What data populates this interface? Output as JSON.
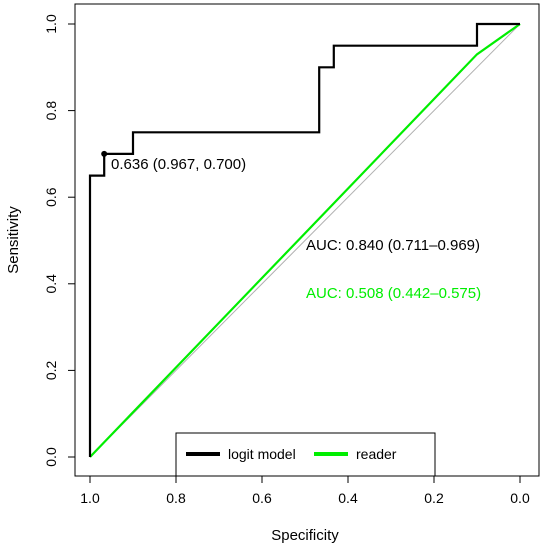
{
  "chart_data": {
    "type": "line",
    "title": "",
    "xlabel": "Specificity",
    "ylabel": "Sensitivity",
    "xlim": [
      1.0,
      0.0
    ],
    "ylim": [
      0.0,
      1.0
    ],
    "x_axis_reversed": true,
    "x_ticks": [
      "1.0",
      "0.8",
      "0.6",
      "0.4",
      "0.2",
      "0.0"
    ],
    "y_ticks": [
      "0.0",
      "0.2",
      "0.4",
      "0.6",
      "0.8",
      "1.0"
    ],
    "grid": false,
    "legend_placement": "bottom-center",
    "diagonal_reference": true,
    "series": [
      {
        "name": "logit model",
        "color": "#000000",
        "points": [
          [
            1.0,
            0.0
          ],
          [
            1.0,
            0.65
          ],
          [
            0.967,
            0.65
          ],
          [
            0.967,
            0.7
          ],
          [
            0.9,
            0.7
          ],
          [
            0.9,
            0.75
          ],
          [
            0.467,
            0.75
          ],
          [
            0.467,
            0.9
          ],
          [
            0.433,
            0.9
          ],
          [
            0.433,
            0.95
          ],
          [
            0.1,
            0.95
          ],
          [
            0.1,
            1.0
          ],
          [
            0.0,
            1.0
          ]
        ]
      },
      {
        "name": "reader",
        "color": "#00ee00",
        "points": [
          [
            1.0,
            0.0
          ],
          [
            0.1,
            0.93
          ],
          [
            0.0,
            1.0
          ]
        ]
      }
    ],
    "highlight_point": {
      "x": 0.967,
      "y": 0.7,
      "label": "0.636 (0.967, 0.700)"
    },
    "annotations": [
      {
        "text": "AUC: 0.840 (0.711–0.969)",
        "color": "#000000"
      },
      {
        "text": "AUC: 0.508 (0.442–0.575)",
        "color": "#00ee00"
      }
    ]
  }
}
